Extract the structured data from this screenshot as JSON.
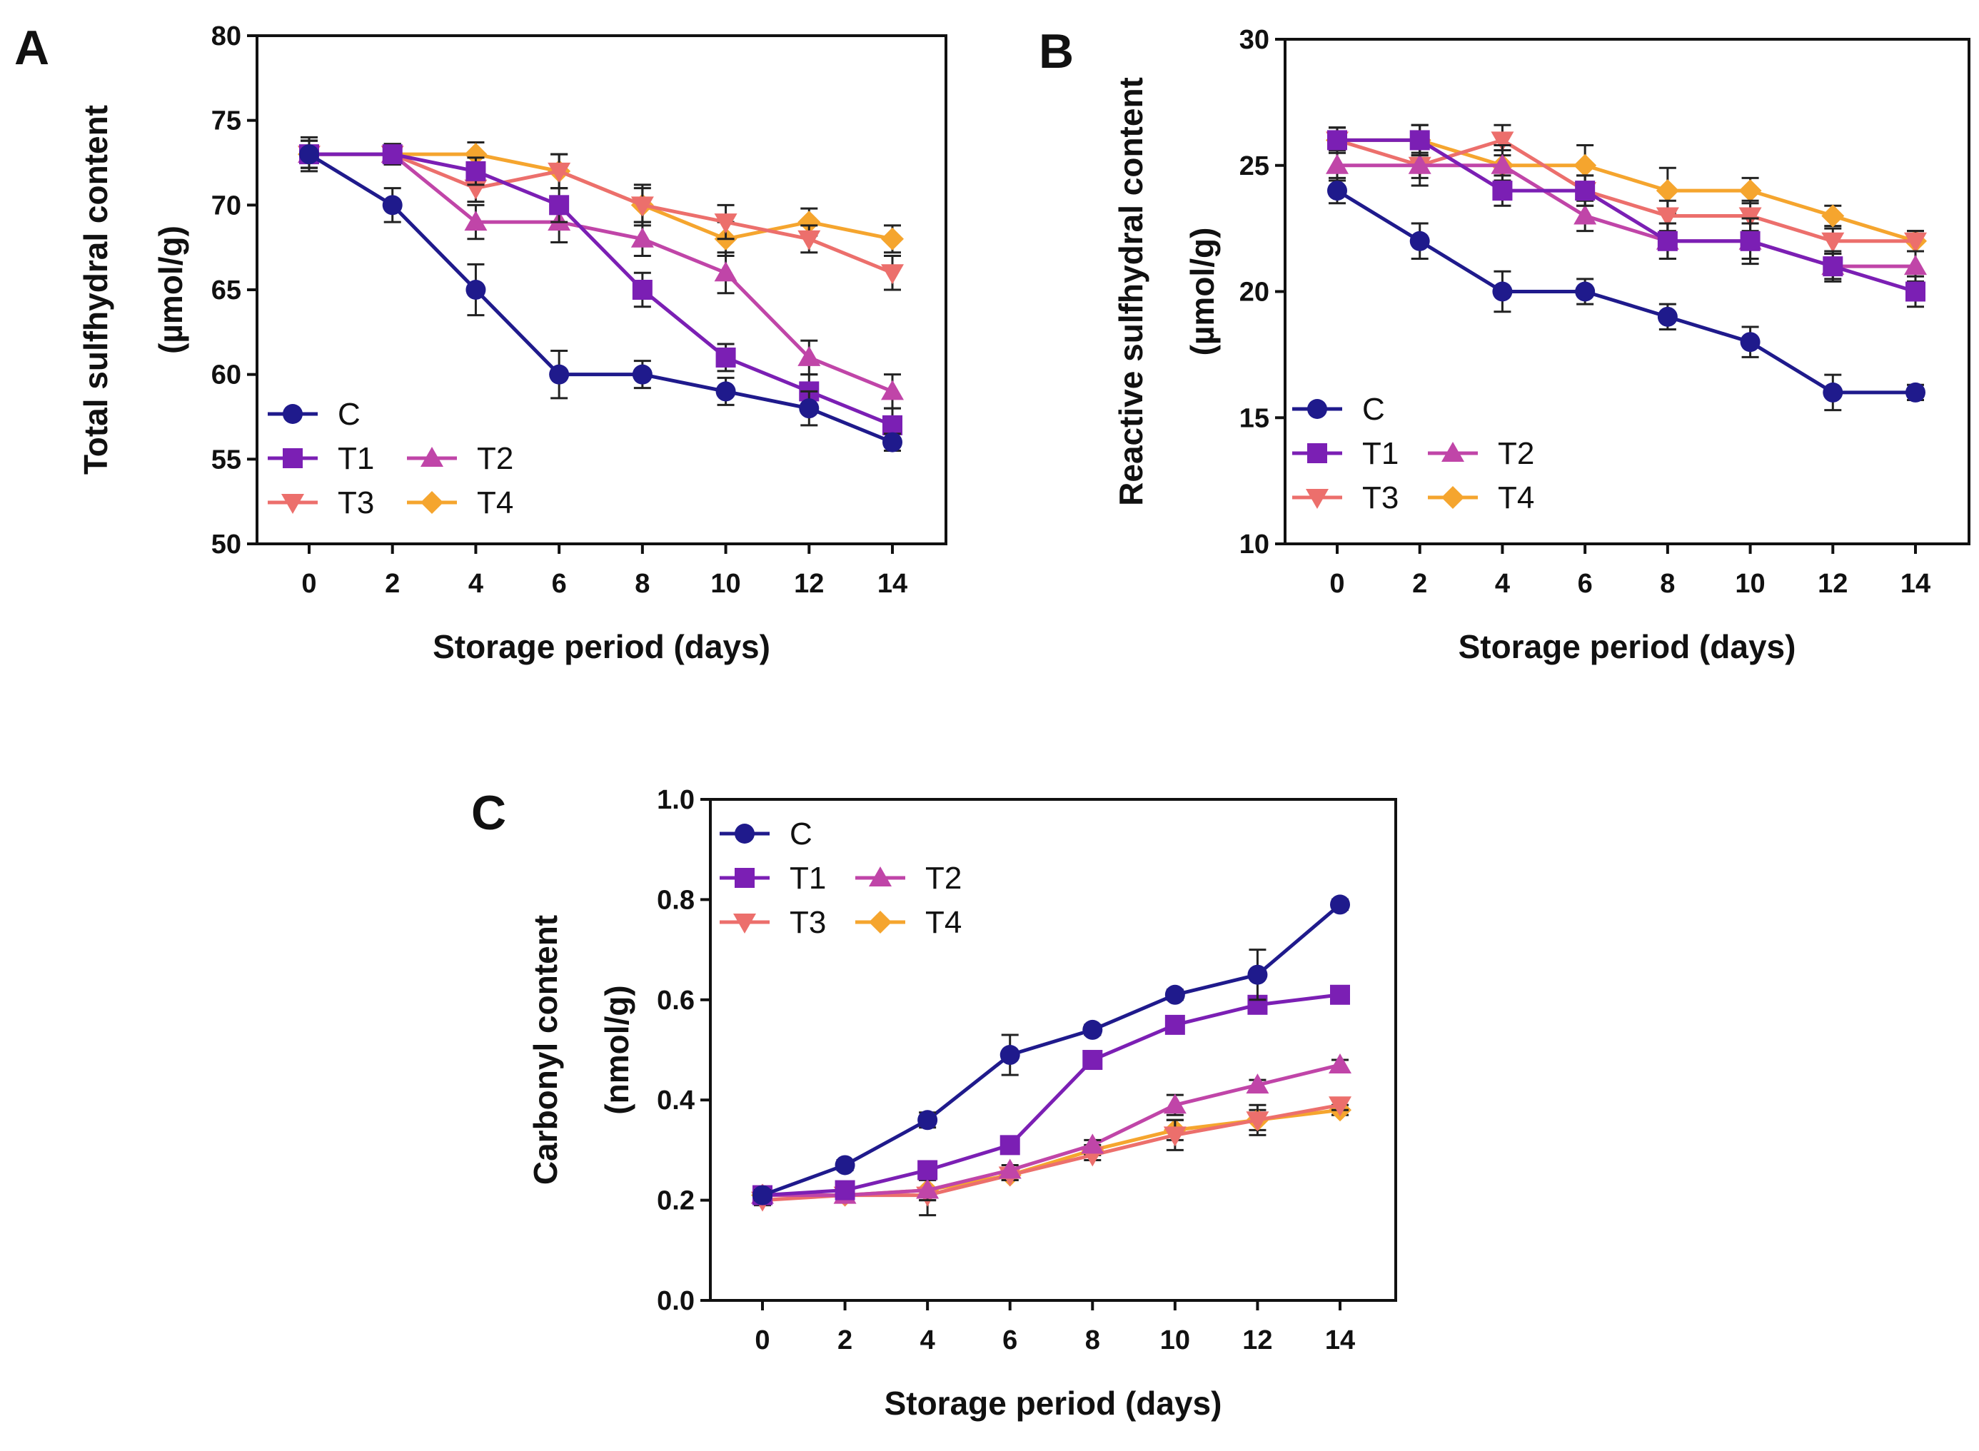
{
  "series_styles": {
    "C": {
      "color": "#1f1a8c",
      "marker": "circle"
    },
    "T1": {
      "color": "#7b1fb4",
      "marker": "square"
    },
    "T2": {
      "color": "#c045a8",
      "marker": "triangle-up"
    },
    "T3": {
      "color": "#ec6f6c",
      "marker": "triangle-down"
    },
    "T4": {
      "color": "#f5a52e",
      "marker": "diamond"
    }
  },
  "chart_data": [
    {
      "panel": "A",
      "type": "line",
      "xlabel": "Storage period (days)",
      "ylabel": [
        "Total sulfhydral content",
        "(µmol/g)"
      ],
      "x": [
        0,
        2,
        4,
        6,
        8,
        10,
        12,
        14
      ],
      "xticks": [
        "0",
        "2",
        "4",
        "6",
        "8",
        "10",
        "12",
        "14"
      ],
      "ylim": [
        50,
        80
      ],
      "yticks": [
        "50",
        "55",
        "60",
        "65",
        "70",
        "75",
        "80"
      ],
      "legend_position": "bottom-left",
      "series": [
        {
          "name": "C",
          "values": [
            73,
            70,
            65,
            60,
            60,
            59,
            58,
            56
          ],
          "errors": [
            1,
            1,
            1.5,
            1.4,
            0.8,
            0.8,
            1,
            0.5
          ]
        },
        {
          "name": "T1",
          "values": [
            73,
            73,
            72,
            70,
            65,
            61,
            59,
            57
          ],
          "errors": [
            0.8,
            0.6,
            0.8,
            1,
            1,
            0.8,
            1,
            1
          ]
        },
        {
          "name": "T2",
          "values": [
            73,
            73,
            69,
            69,
            68,
            66,
            61,
            59
          ],
          "errors": [
            0.8,
            0.6,
            1,
            1.2,
            1,
            1.2,
            1,
            1
          ]
        },
        {
          "name": "T3",
          "values": [
            73,
            73,
            71,
            72,
            70,
            69,
            68,
            66
          ],
          "errors": [
            0.8,
            0.6,
            0.8,
            1,
            1,
            1,
            0.8,
            1
          ]
        },
        {
          "name": "T4",
          "values": [
            73,
            73,
            73,
            72,
            70,
            68,
            69,
            68
          ],
          "errors": [
            0.8,
            0.6,
            0.7,
            1,
            1.2,
            1,
            0.8,
            0.8
          ]
        }
      ]
    },
    {
      "panel": "B",
      "type": "line",
      "xlabel": "Storage period (days)",
      "ylabel": [
        "Reactive sulfhydral content",
        "(µmol/g)"
      ],
      "x": [
        0,
        2,
        4,
        6,
        8,
        10,
        12,
        14
      ],
      "xticks": [
        "0",
        "2",
        "4",
        "6",
        "8",
        "10",
        "12",
        "14"
      ],
      "ylim": [
        10,
        30
      ],
      "yticks": [
        "10",
        "15",
        "20",
        "25",
        "30"
      ],
      "legend_position": "bottom-left",
      "series": [
        {
          "name": "C",
          "values": [
            24,
            22,
            20,
            20,
            19,
            18,
            16,
            16
          ],
          "errors": [
            0.5,
            0.7,
            0.8,
            0.5,
            0.5,
            0.6,
            0.7,
            0.3
          ]
        },
        {
          "name": "T1",
          "values": [
            26,
            26,
            24,
            24,
            22,
            22,
            21,
            20
          ],
          "errors": [
            0.5,
            0.6,
            0.6,
            0.6,
            0.7,
            0.7,
            0.5,
            0.6
          ]
        },
        {
          "name": "T2",
          "values": [
            25,
            25,
            25,
            23,
            22,
            22,
            21,
            21
          ],
          "errors": [
            0.6,
            0.8,
            0.8,
            0.6,
            0.7,
            0.9,
            0.6,
            0.6
          ]
        },
        {
          "name": "T3",
          "values": [
            26,
            25,
            26,
            24,
            23,
            23,
            22,
            22
          ],
          "errors": [
            0.5,
            0.5,
            0.6,
            0.6,
            0.6,
            0.6,
            0.5,
            0.4
          ]
        },
        {
          "name": "T4",
          "values": [
            26,
            26,
            25,
            25,
            24,
            24,
            23,
            22
          ],
          "errors": [
            0.5,
            0.6,
            0.6,
            0.8,
            0.9,
            0.5,
            0.4,
            0.4
          ]
        }
      ]
    },
    {
      "panel": "C",
      "type": "line",
      "xlabel": "Storage period (days)",
      "ylabel": [
        "Carbonyl content",
        "(nmol/g)"
      ],
      "x": [
        0,
        2,
        4,
        6,
        8,
        10,
        12,
        14
      ],
      "xticks": [
        "0",
        "2",
        "4",
        "6",
        "8",
        "10",
        "12",
        "14"
      ],
      "ylim": [
        0,
        1
      ],
      "yticks": [
        "0.0",
        "0.2",
        "0.4",
        "0.6",
        "0.8",
        "1.0"
      ],
      "legend_position": "top-left",
      "series": [
        {
          "name": "C",
          "values": [
            0.21,
            0.27,
            0.36,
            0.49,
            0.54,
            0.61,
            0.65,
            0.79
          ],
          "errors": [
            0.01,
            0.01,
            0.015,
            0.04,
            0.01,
            0.01,
            0.05,
            0.01
          ]
        },
        {
          "name": "T1",
          "values": [
            0.21,
            0.22,
            0.26,
            0.31,
            0.48,
            0.55,
            0.59,
            0.61
          ],
          "errors": [
            0.01,
            0.01,
            0.01,
            0.01,
            0.01,
            0.01,
            0.01,
            0.01
          ]
        },
        {
          "name": "T2",
          "values": [
            0.21,
            0.21,
            0.22,
            0.26,
            0.31,
            0.39,
            0.43,
            0.47
          ],
          "errors": [
            0.01,
            0.01,
            0.02,
            0.01,
            0.01,
            0.02,
            0.01,
            0.01
          ]
        },
        {
          "name": "T3",
          "values": [
            0.2,
            0.21,
            0.21,
            0.25,
            0.29,
            0.33,
            0.36,
            0.39
          ],
          "errors": [
            0.01,
            0.01,
            0.04,
            0.01,
            0.01,
            0.03,
            0.03,
            0.01
          ]
        },
        {
          "name": "T4",
          "values": [
            0.21,
            0.21,
            0.22,
            0.25,
            0.3,
            0.34,
            0.36,
            0.38
          ],
          "errors": [
            0.01,
            0.01,
            0.02,
            0.01,
            0.01,
            0.02,
            0.02,
            0.01
          ]
        }
      ]
    }
  ]
}
